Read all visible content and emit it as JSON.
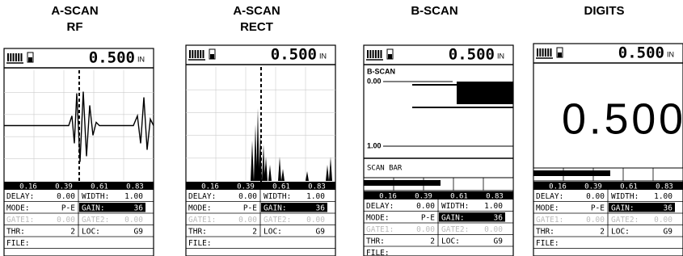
{
  "panels": [
    {
      "title": [
        "A-SCAN",
        "RF"
      ],
      "reading": "0.500",
      "unit": "IN",
      "axis_labels": [
        "0.16",
        "0.39",
        "0.61",
        "0.83"
      ],
      "table": [
        [
          "DELAY:",
          "0.00",
          "WIDTH:",
          "1.00"
        ],
        [
          "MODE:",
          "P-E",
          "GAIN:",
          "36"
        ],
        [
          "GATE1:",
          "0.00",
          "GATE2:",
          "0.00"
        ],
        [
          "THR:",
          "2",
          "LOC:",
          "G9"
        ],
        [
          "FILE:"
        ]
      ]
    },
    {
      "title": [
        "A-SCAN",
        "RECT"
      ],
      "reading": "0.500",
      "unit": "IN",
      "axis_labels": [
        "0.16",
        "0.39",
        "0.61",
        "0.83"
      ],
      "table": [
        [
          "DELAY:",
          "0.00",
          "WIDTH:",
          "1.00"
        ],
        [
          "MODE:",
          "P-E",
          "GAIN:",
          "36"
        ],
        [
          "GATE1:",
          "0.00",
          "GATE2:",
          "0.00"
        ],
        [
          "THR:",
          "2",
          "LOC:",
          "G9"
        ],
        [
          "FILE:"
        ]
      ]
    },
    {
      "title": [
        "B-SCAN"
      ],
      "reading": "0.500",
      "unit": "IN",
      "scan_title": "B-SCAN",
      "depth_top": "0.00",
      "depth_bottom": "1.00",
      "bar_label": "SCAN BAR",
      "axis_labels": [
        "0.16",
        "0.39",
        "0.61",
        "0.83"
      ],
      "table": [
        [
          "DELAY:",
          "0.00",
          "WIDTH:",
          "1.00"
        ],
        [
          "MODE:",
          "P-E",
          "GAIN:",
          "36"
        ],
        [
          "GATE1:",
          "0.00",
          "GATE2:",
          "0.00"
        ],
        [
          "THR:",
          "2",
          "LOC:",
          "G9"
        ],
        [
          "FILE:"
        ]
      ]
    },
    {
      "title": [
        "DIGITS"
      ],
      "reading": "0.500",
      "unit": "IN",
      "big_reading": "0.500",
      "axis_labels": [
        "0.16",
        "0.39",
        "0.61",
        "0.83"
      ],
      "table": [
        [
          "DELAY:",
          "0.00",
          "WIDTH:",
          "1.00"
        ],
        [
          "MODE:",
          "P-E",
          "GAIN:",
          "36"
        ],
        [
          "GATE1:",
          "0.00",
          "GATE2:",
          "0.00"
        ],
        [
          "THR:",
          "2",
          "LOC:",
          "G9"
        ],
        [
          "FILE:"
        ]
      ]
    }
  ]
}
